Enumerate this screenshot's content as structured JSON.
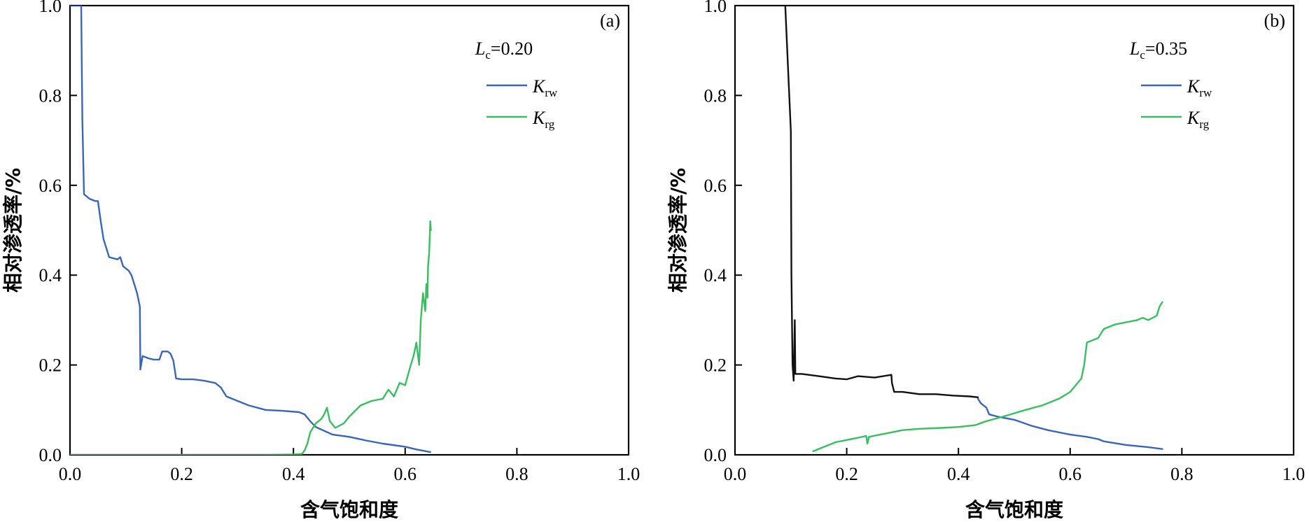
{
  "colors": {
    "krw": "#3a66b8",
    "krg": "#3bbd62",
    "black_segment": "#111111"
  },
  "chart_data": [
    {
      "type": "line",
      "panel_label": "(a)",
      "xlabel": "含气饱和度",
      "ylabel": "相对渗透率/%",
      "xlim": [
        0.0,
        1.0
      ],
      "ylim": [
        0.0,
        1.0
      ],
      "x_ticks": [
        "0.0",
        "0.2",
        "0.4",
        "0.6",
        "0.8",
        "1.0"
      ],
      "y_ticks": [
        "0.0",
        "0.2",
        "0.4",
        "0.6",
        "0.8",
        "1.0"
      ],
      "grid": false,
      "legend_position": "top-right",
      "param": {
        "symbol": "L",
        "sub": "c",
        "value": "=0.20"
      },
      "series": [
        {
          "name_main": "K",
          "name_sub": "rw",
          "color_key": "krw",
          "points": [
            [
              0.0,
              1.0
            ],
            [
              0.02,
              1.0
            ],
            [
              0.022,
              0.75
            ],
            [
              0.025,
              0.58
            ],
            [
              0.035,
              0.57
            ],
            [
              0.045,
              0.565
            ],
            [
              0.05,
              0.565
            ],
            [
              0.055,
              0.52
            ],
            [
              0.06,
              0.48
            ],
            [
              0.07,
              0.44
            ],
            [
              0.085,
              0.435
            ],
            [
              0.09,
              0.44
            ],
            [
              0.095,
              0.42
            ],
            [
              0.105,
              0.41
            ],
            [
              0.11,
              0.4
            ],
            [
              0.12,
              0.36
            ],
            [
              0.125,
              0.33
            ],
            [
              0.126,
              0.19
            ],
            [
              0.13,
              0.22
            ],
            [
              0.14,
              0.215
            ],
            [
              0.15,
              0.212
            ],
            [
              0.16,
              0.212
            ],
            [
              0.165,
              0.23
            ],
            [
              0.175,
              0.23
            ],
            [
              0.18,
              0.225
            ],
            [
              0.185,
              0.21
            ],
            [
              0.19,
              0.17
            ],
            [
              0.2,
              0.168
            ],
            [
              0.22,
              0.168
            ],
            [
              0.24,
              0.165
            ],
            [
              0.26,
              0.16
            ],
            [
              0.27,
              0.15
            ],
            [
              0.28,
              0.13
            ],
            [
              0.3,
              0.12
            ],
            [
              0.32,
              0.11
            ],
            [
              0.35,
              0.1
            ],
            [
              0.38,
              0.098
            ],
            [
              0.41,
              0.095
            ],
            [
              0.42,
              0.09
            ],
            [
              0.43,
              0.075
            ],
            [
              0.44,
              0.062
            ],
            [
              0.47,
              0.045
            ],
            [
              0.5,
              0.04
            ],
            [
              0.53,
              0.032
            ],
            [
              0.56,
              0.025
            ],
            [
              0.6,
              0.018
            ],
            [
              0.62,
              0.012
            ],
            [
              0.645,
              0.006
            ]
          ]
        },
        {
          "name_main": "K",
          "name_sub": "rg",
          "color_key": "krg",
          "points": [
            [
              0.0,
              0.0
            ],
            [
              0.2,
              0.0
            ],
            [
              0.3,
              0.0
            ],
            [
              0.35,
              0.0
            ],
            [
              0.4,
              0.001
            ],
            [
              0.415,
              0.002
            ],
            [
              0.42,
              0.01
            ],
            [
              0.425,
              0.025
            ],
            [
              0.43,
              0.05
            ],
            [
              0.44,
              0.07
            ],
            [
              0.45,
              0.08
            ],
            [
              0.455,
              0.09
            ],
            [
              0.46,
              0.105
            ],
            [
              0.465,
              0.075
            ],
            [
              0.475,
              0.06
            ],
            [
              0.49,
              0.07
            ],
            [
              0.5,
              0.085
            ],
            [
              0.52,
              0.11
            ],
            [
              0.54,
              0.12
            ],
            [
              0.56,
              0.125
            ],
            [
              0.57,
              0.145
            ],
            [
              0.58,
              0.13
            ],
            [
              0.59,
              0.16
            ],
            [
              0.6,
              0.155
            ],
            [
              0.61,
              0.2
            ],
            [
              0.615,
              0.22
            ],
            [
              0.62,
              0.25
            ],
            [
              0.625,
              0.2
            ],
            [
              0.628,
              0.3
            ],
            [
              0.632,
              0.36
            ],
            [
              0.636,
              0.32
            ],
            [
              0.638,
              0.38
            ],
            [
              0.64,
              0.35
            ],
            [
              0.641,
              0.42
            ],
            [
              0.643,
              0.45
            ],
            [
              0.645,
              0.52
            ],
            [
              0.646,
              0.5
            ]
          ]
        }
      ]
    },
    {
      "type": "line",
      "panel_label": "(b)",
      "xlabel": "含气饱和度",
      "ylabel": "相对渗透率/%",
      "xlim": [
        0.0,
        1.0
      ],
      "ylim": [
        0.0,
        1.0
      ],
      "x_ticks": [
        "0.0",
        "0.2",
        "0.4",
        "0.6",
        "0.8",
        "1.0"
      ],
      "y_ticks": [
        "0.0",
        "0.2",
        "0.4",
        "0.6",
        "0.8",
        "1.0"
      ],
      "grid": false,
      "legend_position": "top-right",
      "param": {
        "symbol": "L",
        "sub": "c",
        "value": "=0.35"
      },
      "series": [
        {
          "name_main": "K",
          "name_sub": "rw",
          "color_key": "krw",
          "points": [
            [
              0.435,
              0.125
            ],
            [
              0.44,
              0.115
            ],
            [
              0.45,
              0.105
            ],
            [
              0.455,
              0.09
            ],
            [
              0.47,
              0.085
            ],
            [
              0.5,
              0.078
            ],
            [
              0.53,
              0.065
            ],
            [
              0.56,
              0.055
            ],
            [
              0.6,
              0.045
            ],
            [
              0.63,
              0.04
            ],
            [
              0.65,
              0.035
            ],
            [
              0.66,
              0.03
            ],
            [
              0.7,
              0.022
            ],
            [
              0.74,
              0.017
            ],
            [
              0.765,
              0.013
            ]
          ]
        },
        {
          "name_main": "K",
          "name_sub": "rg",
          "color_key": "krg",
          "points": [
            [
              0.14,
              0.008
            ],
            [
              0.16,
              0.018
            ],
            [
              0.18,
              0.028
            ],
            [
              0.2,
              0.033
            ],
            [
              0.22,
              0.038
            ],
            [
              0.235,
              0.042
            ],
            [
              0.237,
              0.025
            ],
            [
              0.24,
              0.04
            ],
            [
              0.26,
              0.045
            ],
            [
              0.3,
              0.055
            ],
            [
              0.33,
              0.058
            ],
            [
              0.37,
              0.06
            ],
            [
              0.4,
              0.062
            ],
            [
              0.43,
              0.066
            ],
            [
              0.45,
              0.075
            ],
            [
              0.48,
              0.085
            ],
            [
              0.52,
              0.1
            ],
            [
              0.55,
              0.11
            ],
            [
              0.58,
              0.125
            ],
            [
              0.6,
              0.14
            ],
            [
              0.62,
              0.17
            ],
            [
              0.625,
              0.2
            ],
            [
              0.628,
              0.23
            ],
            [
              0.63,
              0.25
            ],
            [
              0.65,
              0.26
            ],
            [
              0.66,
              0.28
            ],
            [
              0.68,
              0.29
            ],
            [
              0.7,
              0.295
            ],
            [
              0.72,
              0.3
            ],
            [
              0.73,
              0.305
            ],
            [
              0.74,
              0.3
            ],
            [
              0.755,
              0.31
            ],
            [
              0.76,
              0.33
            ],
            [
              0.765,
              0.34
            ]
          ]
        },
        {
          "color_key": "black_segment",
          "points": [
            [
              0.09,
              1.0
            ],
            [
              0.1,
              0.72
            ],
            [
              0.101,
              0.4
            ],
            [
              0.103,
              0.2
            ],
            [
              0.105,
              0.165
            ],
            [
              0.107,
              0.3
            ],
            [
              0.108,
              0.18
            ],
            [
              0.12,
              0.18
            ],
            [
              0.15,
              0.175
            ],
            [
              0.18,
              0.17
            ],
            [
              0.2,
              0.168
            ],
            [
              0.22,
              0.175
            ],
            [
              0.25,
              0.172
            ],
            [
              0.28,
              0.178
            ],
            [
              0.281,
              0.16
            ],
            [
              0.285,
              0.14
            ],
            [
              0.3,
              0.14
            ],
            [
              0.33,
              0.135
            ],
            [
              0.36,
              0.135
            ],
            [
              0.39,
              0.132
            ],
            [
              0.42,
              0.13
            ],
            [
              0.435,
              0.128
            ]
          ]
        }
      ]
    }
  ]
}
